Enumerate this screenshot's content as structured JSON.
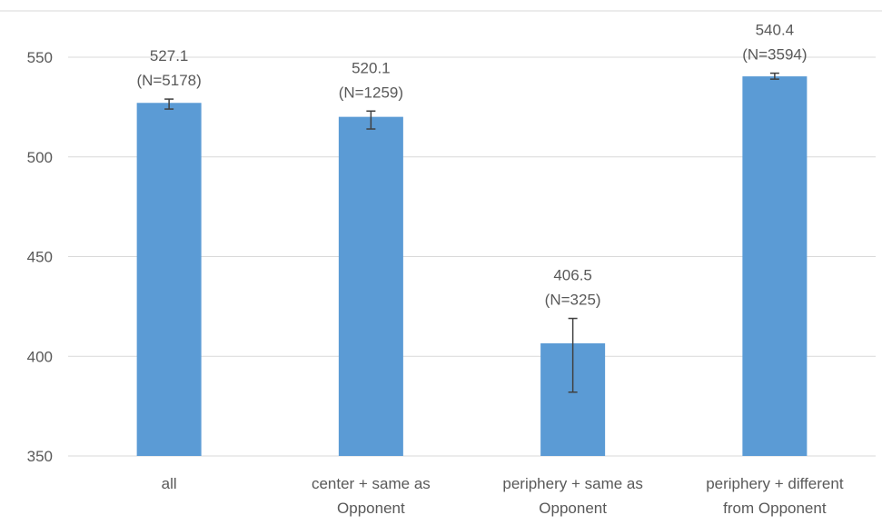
{
  "chart_data": {
    "type": "bar",
    "title": "",
    "xlabel": "",
    "ylabel": "",
    "categories": [
      [
        "all"
      ],
      [
        "center + same as",
        "Opponent"
      ],
      [
        "periphery + same as",
        "Opponent"
      ],
      [
        "periphery + different",
        "from Opponent"
      ]
    ],
    "values": [
      527.1,
      520.1,
      406.5,
      540.4
    ],
    "value_labels": [
      "527.1",
      "520.1",
      "406.5",
      "540.4"
    ],
    "n_labels": [
      "(N=5178)",
      "(N=1259)",
      "(N=325)",
      "(N=3594)"
    ],
    "error_low": [
      524,
      514,
      382,
      539
    ],
    "error_high": [
      529,
      523,
      419,
      542
    ],
    "ylim": [
      350,
      573
    ],
    "yticks": [
      350,
      400,
      450,
      500,
      550
    ],
    "grid": true,
    "legend": "none",
    "colors": {
      "bar": "#5B9BD5",
      "grid": "#D9D9D9",
      "text": "#595959",
      "error": "#404040"
    }
  }
}
